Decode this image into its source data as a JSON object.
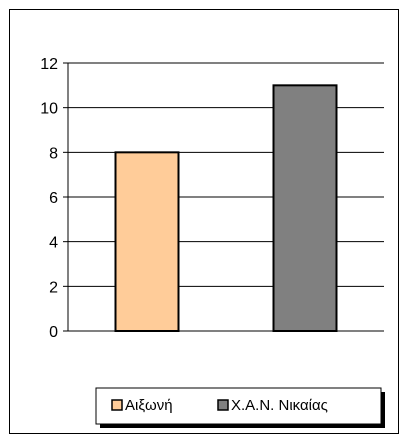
{
  "chart_data": {
    "type": "bar",
    "categories": [
      "Αιξωνή",
      "Χ.Α.Ν. Νικαίας"
    ],
    "values": [
      8,
      11
    ],
    "colors": [
      "#FFCC99",
      "#808080"
    ],
    "title": "",
    "xlabel": "",
    "ylabel": "",
    "ylim": [
      0,
      12
    ],
    "yticks": [
      0,
      2,
      4,
      6,
      8,
      10,
      12
    ],
    "grid": true,
    "legend": {
      "placement": "bottom",
      "entries": [
        "Αιξωνή",
        "Χ.Α.Ν. Νικαίας"
      ]
    }
  }
}
